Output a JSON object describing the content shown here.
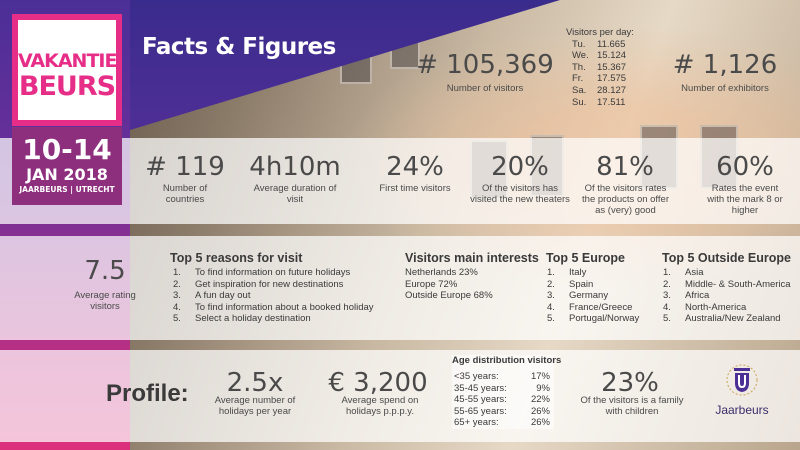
{
  "logo": {
    "line1": "VAKANTIE",
    "line2": "BEURS",
    "dates": "10-14",
    "month_year": "JAN 2018",
    "venue": "JAARBEURS | UTRECHT"
  },
  "title": "Facts & Figures",
  "top_stats": [
    {
      "value": "# 105,369",
      "label": "Number of visitors"
    },
    {
      "value": "# 1,126",
      "label": "Number of exhibitors"
    }
  ],
  "visitors_per_day": {
    "heading": "Visitors per day:",
    "rows": [
      {
        "day": "Tu.",
        "value": "11.665"
      },
      {
        "day": "We.",
        "value": "15.124"
      },
      {
        "day": "Th.",
        "value": "15.367"
      },
      {
        "day": "Fr.",
        "value": "17.575"
      },
      {
        "day": "Sa.",
        "value": "28.127"
      },
      {
        "day": "Su.",
        "value": "17.511"
      }
    ]
  },
  "middle_stats": [
    {
      "value": "# 119",
      "label": "Number of countries"
    },
    {
      "value": "4h10m",
      "label": "Average duration of visit"
    },
    {
      "value": "24%",
      "label": "First time visitors"
    },
    {
      "value": "20%",
      "label": "Of the visitors has visited the new theaters"
    },
    {
      "value": "81%",
      "label": "Of the visitors rates the products on offer as (very) good"
    },
    {
      "value": "60%",
      "label": "Rates the event with the mark 8 or higher"
    }
  ],
  "rating": {
    "value": "7.5",
    "label": "Average rating visitors"
  },
  "reasons": {
    "heading": "Top 5 reasons for visit",
    "items": [
      "To find information on future holidays",
      "Get inspiration for new destinations",
      "A fun day out",
      "To find information about a booked holiday",
      "Select a holiday destination"
    ]
  },
  "interests": {
    "heading": "Visitors main interests",
    "items": [
      "Netherlands 23%",
      "Europe 72%",
      "Outside Europe 68%"
    ]
  },
  "europe": {
    "heading": "Top 5 Europe",
    "items": [
      "Italy",
      "Spain",
      "Germany",
      "France/Greece",
      "Portugal/Norway"
    ]
  },
  "outside": {
    "heading": "Top 5 Outside Europe",
    "items": [
      "Asia",
      "Middle- & South-America",
      "Africa",
      "North-America",
      "Australia/New Zealand"
    ]
  },
  "profile": {
    "label": "Profile:",
    "holidays": {
      "value": "2.5x",
      "label": "Average number of holidays per year"
    },
    "spend": {
      "value": "€ 3,200",
      "label": "Average spend on holidays p.p.p.y."
    },
    "age": {
      "heading": "Age distribution visitors",
      "rows": [
        {
          "range": "<35 years:",
          "pct": "17%"
        },
        {
          "range": "35-45 years:",
          "pct": "9%"
        },
        {
          "range": "45-55 years:",
          "pct": "22%"
        },
        {
          "range": "55-65 years:",
          "pct": "26%"
        },
        {
          "range": "65+ years:",
          "pct": "26%"
        }
      ]
    },
    "family": {
      "value": "23%",
      "label": "Of the visitors is a family with children"
    }
  },
  "brand": {
    "name": "Jaarbeurs",
    "icon": "jaarbeurs-crest-icon",
    "color_pink": "#e62d87",
    "color_purple": "#4b2f97"
  }
}
